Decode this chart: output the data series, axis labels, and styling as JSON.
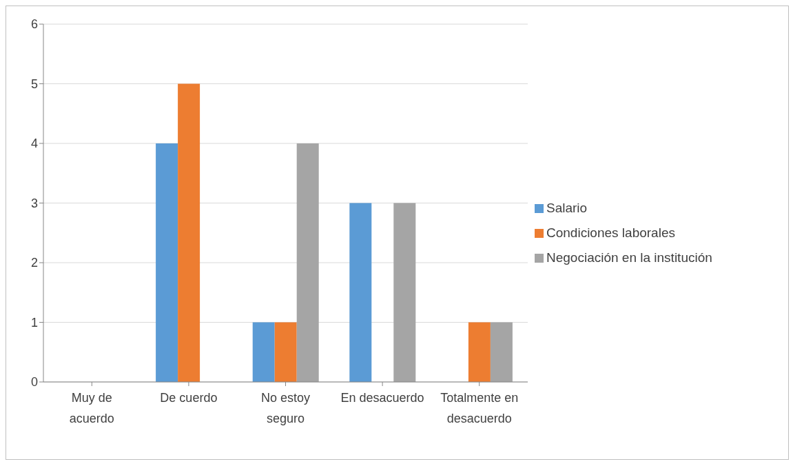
{
  "chart_data": {
    "type": "bar",
    "categories": [
      "Muy de acuerdo",
      "De cuerdo",
      "No estoy seguro",
      "En desacuerdo",
      "Totalmente en desacuerdo"
    ],
    "series": [
      {
        "name": "Salario",
        "color": "#5b9bd5",
        "values": [
          0,
          4,
          1,
          3,
          0
        ]
      },
      {
        "name": "Condiciones laborales",
        "color": "#ed7d31",
        "values": [
          0,
          5,
          1,
          0,
          1
        ]
      },
      {
        "name": "Negociación en la institución",
        "color": "#a5a5a5",
        "values": [
          0,
          0,
          4,
          3,
          1
        ]
      }
    ],
    "ylim": [
      0,
      6
    ],
    "yticks": [
      0,
      1,
      2,
      3,
      4,
      5,
      6
    ],
    "grid": "y",
    "legend": "right"
  }
}
